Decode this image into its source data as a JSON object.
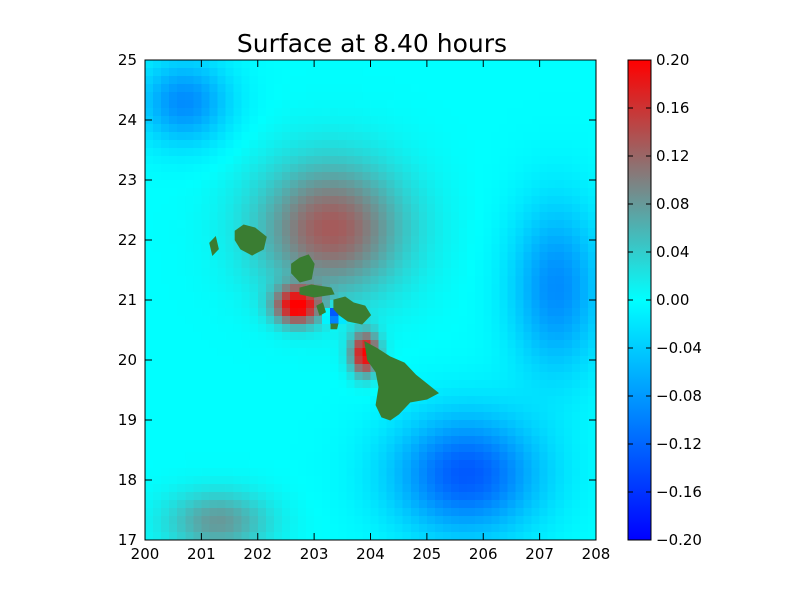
{
  "chart_data": {
    "type": "heatmap",
    "title": "Surface at 8.40 hours",
    "xlabel": "",
    "ylabel": "",
    "xlim": [
      200,
      208
    ],
    "ylim": [
      17,
      25
    ],
    "x_ticks": [
      "200",
      "201",
      "202",
      "203",
      "204",
      "205",
      "206",
      "207",
      "208"
    ],
    "y_ticks": [
      "17",
      "18",
      "19",
      "20",
      "21",
      "22",
      "23",
      "24",
      "25"
    ],
    "colorbar": {
      "vmin": -0.2,
      "vmax": 0.2,
      "ticks": [
        "0.20",
        "0.16",
        "0.12",
        "0.08",
        "0.04",
        "0.00",
        "−0.04",
        "−0.08",
        "−0.12",
        "−0.16",
        "−0.20"
      ],
      "colors": [
        "#0000ff",
        "#00ffff",
        "#808080",
        "#ff0000"
      ]
    },
    "land_color": "#3a7d32",
    "grid": false,
    "field_features": [
      {
        "kind": "positive_lobe",
        "center": [
          203.3,
          22.2
        ],
        "spread": [
          1.3,
          1.1
        ],
        "amplitude": 0.13
      },
      {
        "kind": "positive_lobe",
        "center": [
          202.7,
          20.9
        ],
        "spread": [
          0.4,
          0.3
        ],
        "amplitude": 0.2
      },
      {
        "kind": "positive_lobe",
        "center": [
          203.9,
          20.1
        ],
        "spread": [
          0.25,
          0.35
        ],
        "amplitude": 0.2
      },
      {
        "kind": "positive_lobe",
        "center": [
          201.3,
          17.3
        ],
        "spread": [
          0.9,
          0.5
        ],
        "amplitude": 0.08
      },
      {
        "kind": "negative_lobe",
        "center": [
          205.7,
          18.1
        ],
        "spread": [
          1.3,
          1.0
        ],
        "amplitude": -0.13
      },
      {
        "kind": "negative_lobe",
        "center": [
          200.7,
          24.3
        ],
        "spread": [
          0.8,
          0.7
        ],
        "amplitude": -0.09
      },
      {
        "kind": "negative_lobe",
        "center": [
          207.3,
          21.2
        ],
        "spread": [
          0.8,
          1.4
        ],
        "amplitude": -0.09
      },
      {
        "kind": "negative_lobe",
        "center": [
          203.35,
          20.75
        ],
        "spread": [
          0.14,
          0.12
        ],
        "amplitude": -0.2
      }
    ],
    "islands": [
      {
        "name": "Kauai",
        "outline": [
          [
            201.6,
            22.15
          ],
          [
            201.75,
            22.25
          ],
          [
            201.95,
            22.2
          ],
          [
            202.15,
            22.05
          ],
          [
            202.1,
            21.85
          ],
          [
            201.9,
            21.75
          ],
          [
            201.7,
            21.85
          ],
          [
            201.6,
            22.0
          ]
        ]
      },
      {
        "name": "Niihau",
        "outline": [
          [
            201.15,
            21.95
          ],
          [
            201.25,
            22.05
          ],
          [
            201.3,
            21.85
          ],
          [
            201.2,
            21.75
          ]
        ]
      },
      {
        "name": "Oahu",
        "outline": [
          [
            202.75,
            21.7
          ],
          [
            202.9,
            21.75
          ],
          [
            203.0,
            21.6
          ],
          [
            202.95,
            21.35
          ],
          [
            202.75,
            21.3
          ],
          [
            202.6,
            21.45
          ],
          [
            202.6,
            21.6
          ]
        ]
      },
      {
        "name": "Molokai",
        "outline": [
          [
            202.75,
            21.2
          ],
          [
            202.95,
            21.25
          ],
          [
            203.3,
            21.2
          ],
          [
            203.35,
            21.1
          ],
          [
            203.0,
            21.05
          ],
          [
            202.75,
            21.1
          ]
        ]
      },
      {
        "name": "Lanai",
        "outline": [
          [
            203.05,
            20.9
          ],
          [
            203.15,
            20.95
          ],
          [
            203.2,
            20.8
          ],
          [
            203.1,
            20.75
          ]
        ]
      },
      {
        "name": "Maui",
        "outline": [
          [
            203.35,
            21.0
          ],
          [
            203.55,
            21.05
          ],
          [
            203.7,
            20.95
          ],
          [
            203.9,
            20.9
          ],
          [
            204.0,
            20.75
          ],
          [
            203.85,
            20.6
          ],
          [
            203.6,
            20.65
          ],
          [
            203.45,
            20.75
          ],
          [
            203.35,
            20.85
          ]
        ]
      },
      {
        "name": "Kahoolawe",
        "outline": [
          [
            203.3,
            20.6
          ],
          [
            203.42,
            20.6
          ],
          [
            203.4,
            20.52
          ],
          [
            203.3,
            20.52
          ]
        ]
      },
      {
        "name": "Hawaii",
        "outline": [
          [
            203.9,
            20.3
          ],
          [
            204.1,
            20.2
          ],
          [
            204.35,
            20.05
          ],
          [
            204.6,
            19.95
          ],
          [
            204.8,
            19.75
          ],
          [
            205.0,
            19.6
          ],
          [
            205.2,
            19.45
          ],
          [
            205.0,
            19.35
          ],
          [
            204.7,
            19.3
          ],
          [
            204.5,
            19.1
          ],
          [
            204.35,
            19.0
          ],
          [
            204.2,
            19.05
          ],
          [
            204.1,
            19.25
          ],
          [
            204.15,
            19.55
          ],
          [
            204.1,
            19.8
          ],
          [
            203.95,
            20.0
          ]
        ]
      }
    ]
  }
}
